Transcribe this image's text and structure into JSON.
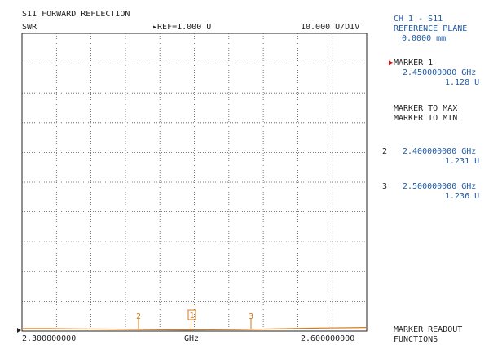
{
  "header": {
    "title": "S11 FORWARD REFLECTION",
    "format": "SWR",
    "ref_marker": "▸",
    "reference": "REF=1.000 U",
    "scale": "10.000 U/DIV"
  },
  "channel": {
    "name": "CH 1 - S11",
    "ref_plane_label": "REFERENCE PLANE",
    "ref_plane_value": "0.0000 mm"
  },
  "active_marker": {
    "pointer": "▶",
    "label": "MARKER 1",
    "freq": "2.450000000 GHz",
    "value": "1.128 U"
  },
  "softkeys": {
    "marker_to_max": "MARKER TO MAX",
    "marker_to_min": "MARKER TO MIN",
    "readout_line1": "MARKER READOUT",
    "readout_line2": "FUNCTIONS"
  },
  "markers": [
    {
      "id": "1",
      "freq": "2.450000000 GHz",
      "value": "1.128 U"
    },
    {
      "id": "2",
      "freq": "2.400000000 GHz",
      "value": "1.231 U"
    },
    {
      "id": "3",
      "freq": "2.500000000 GHz",
      "value": "1.236 U"
    }
  ],
  "axis": {
    "start": "2.300000000",
    "unit": "GHz",
    "stop": "2.600000000"
  },
  "colors": {
    "trace": "#d77a1a",
    "marker_readout": "#1f5aa6",
    "pointer": "#d01010",
    "grid": "#555555"
  }
}
